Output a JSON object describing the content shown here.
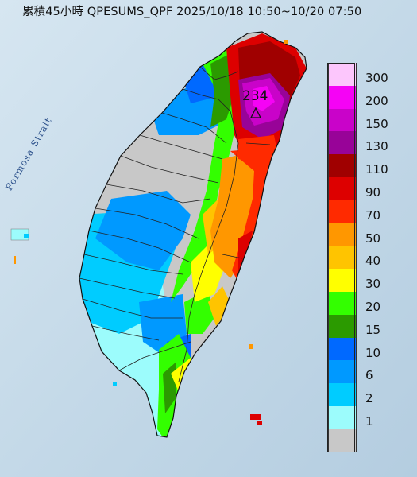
{
  "header": {
    "title": "累積45小時 QPESUMS_QPF 2025/10/18 10:50~10/20 07:50"
  },
  "map": {
    "strait_label": "Formosa Strait",
    "max_marker_value": "234",
    "ocean_color": "#c6dcea",
    "land_background_color": "#c8c8c8"
  },
  "legend": {
    "items": [
      {
        "label": "300",
        "color": "#fcc6fc"
      },
      {
        "label": "200",
        "color": "#f503f5"
      },
      {
        "label": "150",
        "color": "#c903c9"
      },
      {
        "label": "130",
        "color": "#980398"
      },
      {
        "label": "110",
        "color": "#a00000"
      },
      {
        "label": "90",
        "color": "#dd0000"
      },
      {
        "label": "70",
        "color": "#ff2a00"
      },
      {
        "label": "50",
        "color": "#ff9700"
      },
      {
        "label": "40",
        "color": "#ffc400"
      },
      {
        "label": "30",
        "color": "#ffff00"
      },
      {
        "label": "20",
        "color": "#33ff00"
      },
      {
        "label": "15",
        "color": "#2b9a00"
      },
      {
        "label": "10",
        "color": "#0069ff"
      },
      {
        "label": "6",
        "color": "#0099ff"
      },
      {
        "label": "2",
        "color": "#00ccff"
      },
      {
        "label": "1",
        "color": "#9cfcfc"
      },
      {
        "label": "",
        "color": "#c8c8c8"
      }
    ]
  }
}
